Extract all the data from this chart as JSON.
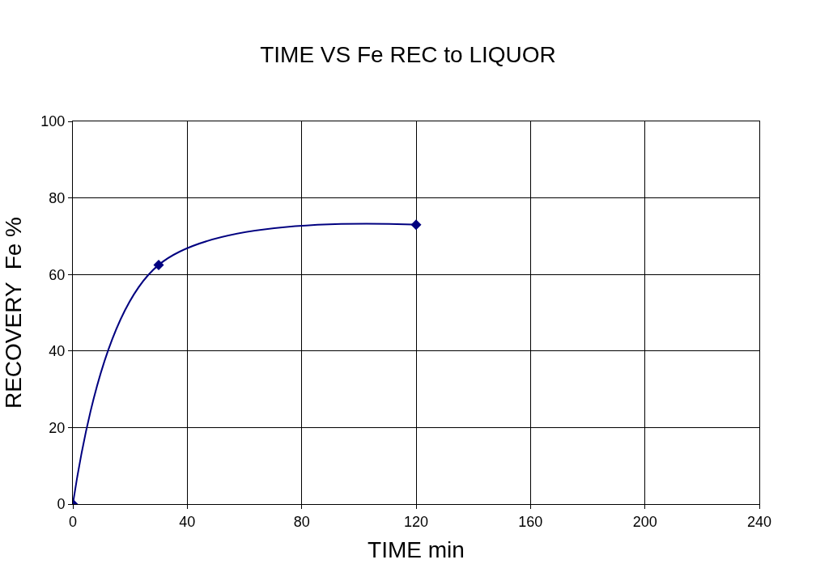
{
  "chart_data": {
    "type": "line",
    "title": "TIME VS Fe REC to LIQUOR",
    "xlabel": "TIME min",
    "ylabel": "RECOVERY  Fe %",
    "x": [
      0,
      30,
      120
    ],
    "series": [
      {
        "color": "#000080",
        "values": [
          0,
          62.5,
          73
        ]
      }
    ],
    "xlim": [
      0,
      240
    ],
    "xticks": [
      0,
      40,
      80,
      120,
      160,
      200,
      240
    ],
    "ylim": [
      0,
      100
    ],
    "yticks": [
      0,
      20,
      40,
      60,
      80,
      100
    ],
    "grid": true,
    "marker": "diamond",
    "line_style": "solid"
  }
}
